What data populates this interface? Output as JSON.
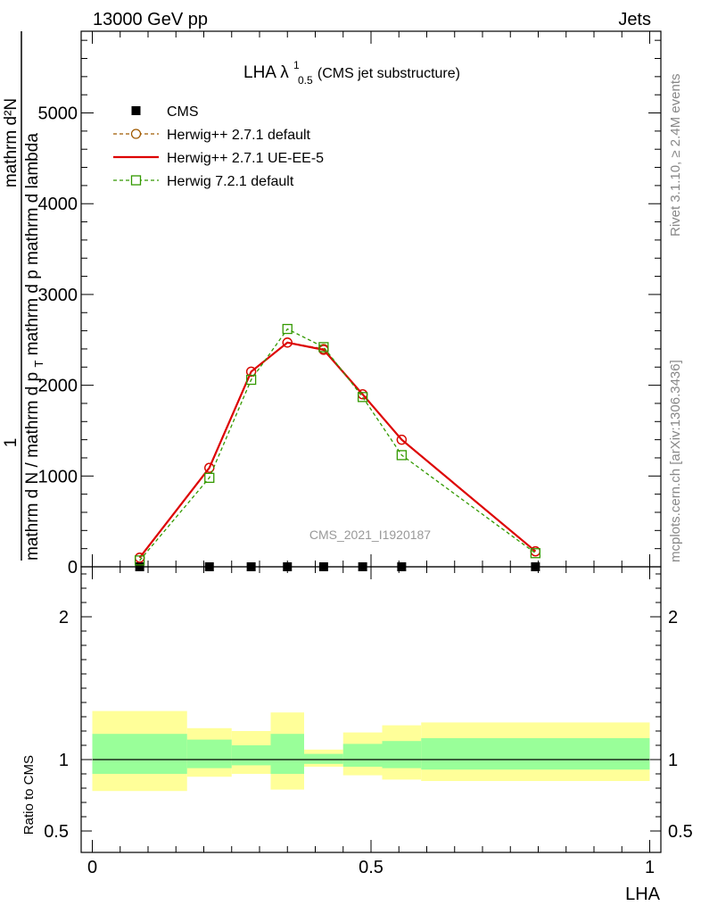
{
  "header": {
    "left": "13000 GeV pp",
    "right": "Jets"
  },
  "side_labels": {
    "rivet": "Rivet 3.1.10, ≥ 2.4M events",
    "mcplots": "mcplots.cern.ch [arXiv:1306.3436]"
  },
  "plot_title": {
    "main": "LHA λ",
    "sup": "1",
    "sub": "0.5",
    "suffix": " (CMS jet substructure)"
  },
  "watermark": "CMS_2021_I1920187",
  "ylabel_top": {
    "numerator": "mathrm d²N",
    "denominator": "mathrm d N / mathrm d p",
    "sub": "T",
    "rest": " mathrm d p mathrm d lambda",
    "prefix": "1"
  },
  "ylabel_ratio": "Ratio to CMS",
  "xlabel": "LHA",
  "chart_data": [
    {
      "type": "line",
      "panel": "main",
      "xlim": [
        -0.02,
        1.02
      ],
      "ylim": [
        0,
        5900
      ],
      "yticks": [
        0,
        1000,
        2000,
        3000,
        4000,
        5000
      ],
      "ytick_labels": [
        "0",
        "1000",
        "2000",
        "3000",
        "4000",
        "5000"
      ],
      "legend": "top-left",
      "series": [
        {
          "name": "CMS",
          "style": "data",
          "color": "#000000",
          "x": [
            0.085,
            0.21,
            0.285,
            0.35,
            0.415,
            0.485,
            0.555,
            0.795
          ],
          "y": [
            0,
            0,
            0,
            0,
            0,
            0,
            0,
            0
          ]
        },
        {
          "name": "Herwig++ 2.7.1 default",
          "style": "circle-dashed",
          "color": "#a05a00",
          "x": [
            0.085,
            0.21,
            0.285,
            0.35,
            0.415,
            0.485,
            0.555,
            0.795
          ],
          "y": [
            100,
            1090,
            2150,
            2470,
            2400,
            1900,
            1400,
            170
          ]
        },
        {
          "name": "Herwig++ 2.7.1 UE-EE-5",
          "style": "solid",
          "color": "#dd0000",
          "x": [
            0.085,
            0.21,
            0.285,
            0.35,
            0.415,
            0.485,
            0.555,
            0.795
          ],
          "y": [
            100,
            1090,
            2150,
            2470,
            2390,
            1900,
            1400,
            170
          ]
        },
        {
          "name": "Herwig 7.2.1 default",
          "style": "square-dashed",
          "color": "#339900",
          "x": [
            0.085,
            0.21,
            0.285,
            0.35,
            0.415,
            0.485,
            0.555,
            0.795
          ],
          "y": [
            70,
            980,
            2060,
            2620,
            2420,
            1870,
            1230,
            150
          ]
        }
      ]
    },
    {
      "type": "area",
      "panel": "ratio",
      "xlim": [
        -0.02,
        1.02
      ],
      "ylim": [
        0.35,
        2.35
      ],
      "yticks": [
        0.5,
        1,
        2
      ],
      "ytick_labels": [
        "0.5",
        "1",
        "2"
      ],
      "xticks": [
        0,
        0.5,
        1
      ],
      "xtick_labels": [
        "0",
        "0.5",
        "1"
      ],
      "bins": [
        {
          "lo": 0.0,
          "hi": 0.17,
          "outer": [
            0.78,
            1.34
          ],
          "inner": [
            0.9,
            1.18
          ]
        },
        {
          "lo": 0.17,
          "hi": 0.25,
          "outer": [
            0.88,
            1.22
          ],
          "inner": [
            0.94,
            1.14
          ]
        },
        {
          "lo": 0.25,
          "hi": 0.32,
          "outer": [
            0.9,
            1.2
          ],
          "inner": [
            0.96,
            1.1
          ]
        },
        {
          "lo": 0.32,
          "hi": 0.38,
          "outer": [
            0.79,
            1.33
          ],
          "inner": [
            0.9,
            1.18
          ]
        },
        {
          "lo": 0.38,
          "hi": 0.45,
          "outer": [
            0.95,
            1.07
          ],
          "inner": [
            0.97,
            1.04
          ]
        },
        {
          "lo": 0.45,
          "hi": 0.52,
          "outer": [
            0.89,
            1.19
          ],
          "inner": [
            0.95,
            1.11
          ]
        },
        {
          "lo": 0.52,
          "hi": 0.59,
          "outer": [
            0.86,
            1.24
          ],
          "inner": [
            0.94,
            1.13
          ]
        },
        {
          "lo": 0.59,
          "hi": 1.0,
          "outer": [
            0.85,
            1.26
          ],
          "inner": [
            0.93,
            1.15
          ]
        }
      ],
      "reference": 1.0
    }
  ],
  "colors": {
    "band_outer": "#ffff99",
    "band_inner": "#99ff99",
    "axis": "#000000",
    "side_text": "#888888",
    "watermark": "#999999"
  }
}
